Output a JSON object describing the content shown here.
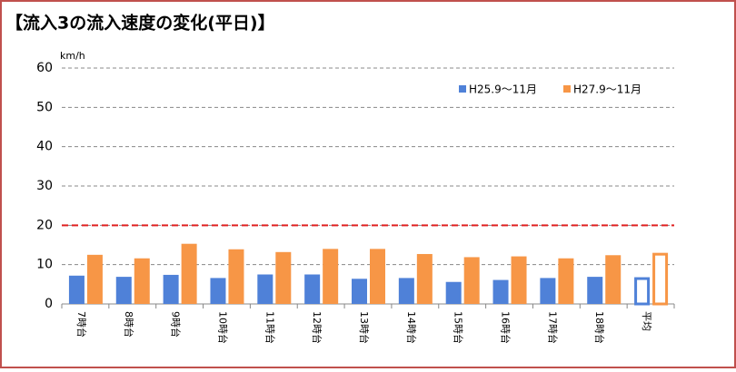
{
  "chart_data": {
    "type": "bar",
    "title": "【流入3の流入速度の変化(平日)】",
    "y_unit": "km/h",
    "categories": [
      "7時台",
      "8時台",
      "9時台",
      "10時台",
      "11時台",
      "12時台",
      "13時台",
      "14時台",
      "15時台",
      "16時台",
      "17時台",
      "18時台",
      "平均"
    ],
    "series": [
      {
        "name": "H25.9～11月",
        "color": "#4f81d8",
        "values": [
          7.2,
          6.9,
          7.4,
          6.6,
          7.5,
          7.5,
          6.4,
          6.6,
          5.6,
          6.1,
          6.6,
          6.9,
          6.8
        ]
      },
      {
        "name": "H27.9～11月",
        "color": "#f79646",
        "values": [
          12.5,
          11.6,
          15.3,
          13.9,
          13.2,
          14.0,
          14.0,
          12.7,
          11.9,
          12.1,
          11.6,
          12.4,
          13.0
        ]
      }
    ],
    "outlined_index": 12,
    "reference_line": {
      "value": 20,
      "color": "#e02020"
    },
    "ylim": [
      0,
      60
    ],
    "yticks": [
      0,
      10,
      20,
      30,
      40,
      50,
      60
    ],
    "grid": true,
    "legend": "top-right"
  }
}
